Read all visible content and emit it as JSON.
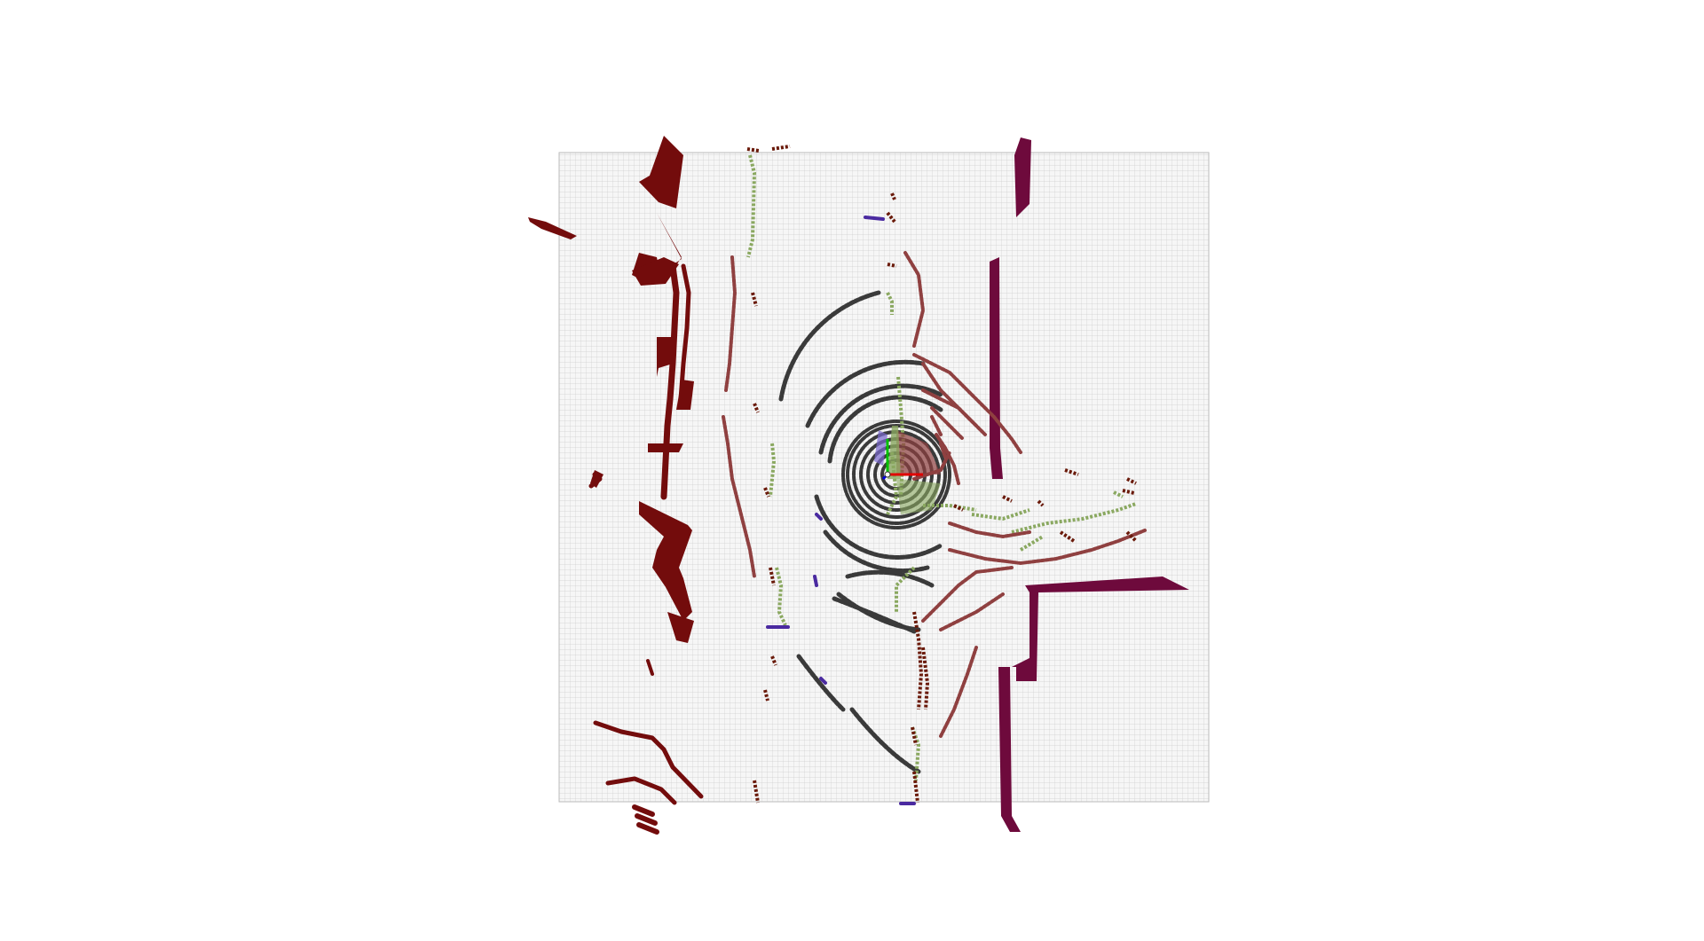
{
  "scene": {
    "kind": "lidar-occupancy-grid-visualization",
    "colors": {
      "background": "#ffffff",
      "grid_fill": "#f6f6f6",
      "grid_line": "#c9c9c9",
      "wall": "#6e0a3c",
      "wall_dark": "#730c0c",
      "lidar_ring": "#3a3a3a",
      "lidar_ring_outline": "#ffffff",
      "ground_points": "#8aa860",
      "obstacle_points": "#8f4040",
      "dark_obstacle": "#6a1a0a",
      "low_obstacle": "#4a2aa0",
      "axis_x": "#e00000",
      "axis_y": "#00c000",
      "axis_z": "#0000e0"
    },
    "legend": [],
    "title": ""
  }
}
